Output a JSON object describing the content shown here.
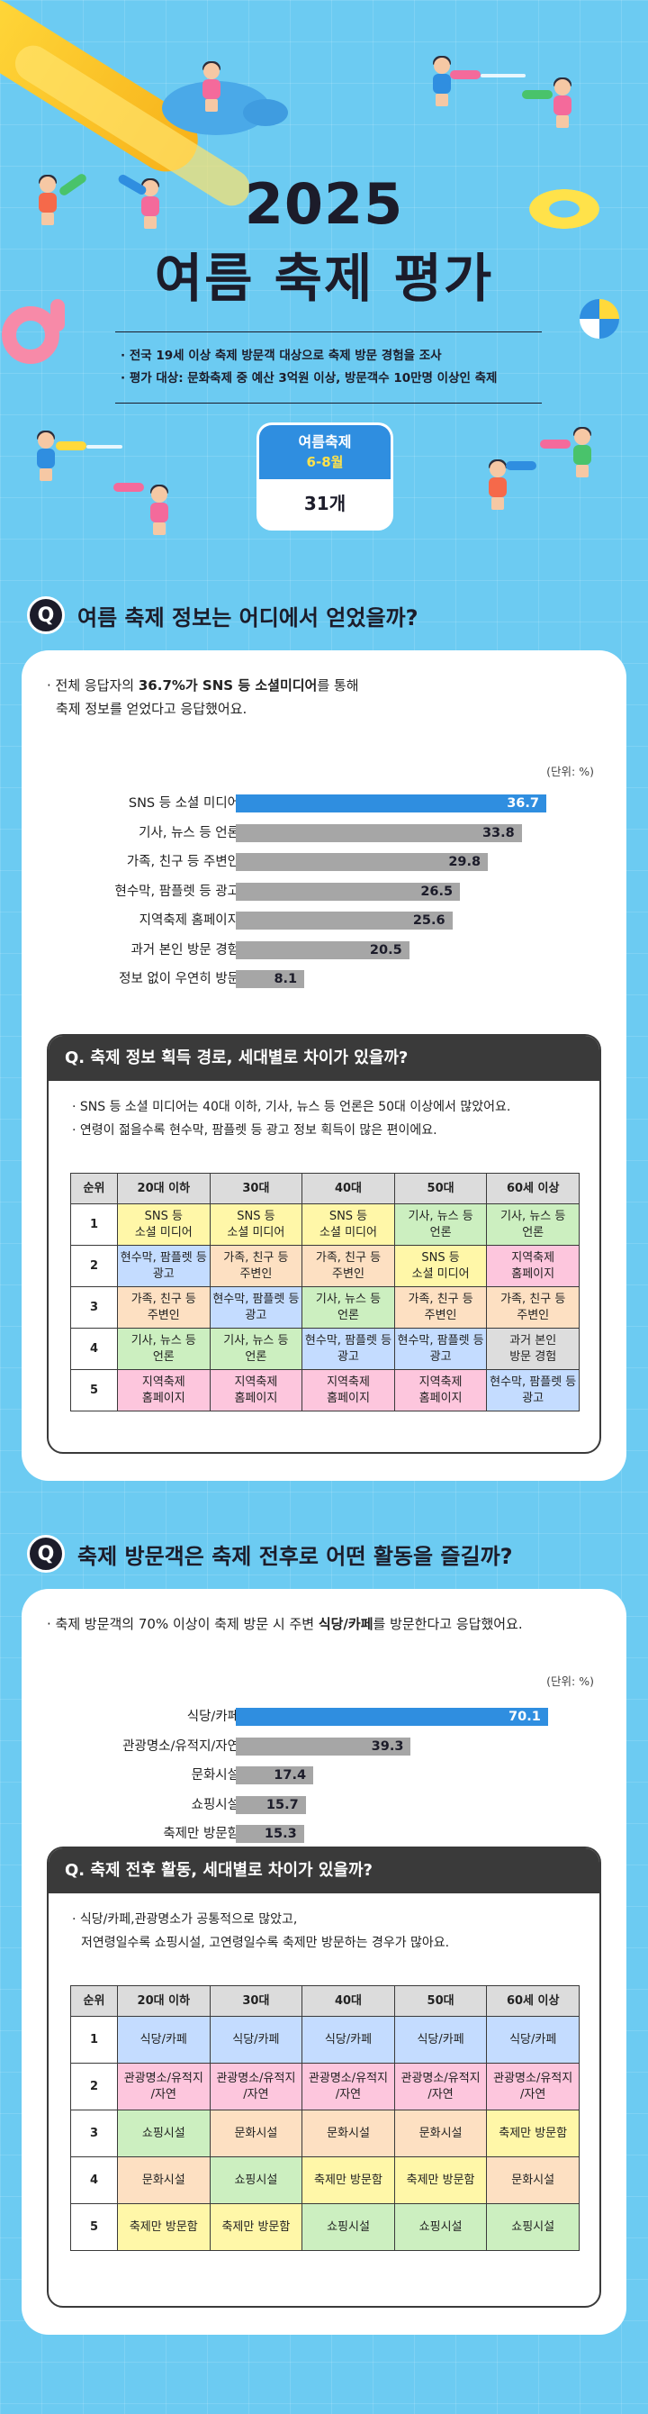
{
  "hero": {
    "year": "2025",
    "title": "여름 축제 평가",
    "info": [
      "· 전국 19세 이상 축제 방문객 대상으로 축제 방문 경험을 조사",
      "· 평가 대상: 문화축제 중 예산 3억원 이상, 방문객수 10만명 이상인 축제"
    ],
    "badge": {
      "label": "여름축제",
      "period": "6-8월",
      "count": "31개"
    }
  },
  "section1": {
    "q_mark": "Q",
    "question": "여름 축제 정보는 어디에서 얻었을까?",
    "lead_prefix": "· 전체 응답자의 ",
    "lead_bold": "36.7%가 SNS 등 소셜미디어",
    "lead_suffix": "를 통해",
    "lead_line2": "축제 정보를 얻었다고 응답했어요.",
    "unit": "(단위: %)",
    "sub_title": "Q. 축제 정보 획득 경로, 세대별로 차이가 있을까?",
    "sub_bullets": [
      "· SNS 등 소셜 미디어는 40대 이하, 기사, 뉴스 등 언론은 50대 이상에서 많았어요.",
      "· 연령이 젊을수록 현수막, 팜플렛 등 광고 정보 획득이 많은 편이에요."
    ],
    "table": {
      "headers": [
        "순위",
        "20대 이하",
        "30대",
        "40대",
        "50대",
        "60세 이상"
      ],
      "rows": [
        [
          "1",
          "SNS 등\n소셜 미디어",
          "SNS 등\n소셜 미디어",
          "SNS 등\n소셜 미디어",
          "기사, 뉴스 등\n언론",
          "기사, 뉴스 등\n언론"
        ],
        [
          "2",
          "현수막, 팜플렛 등\n광고",
          "가족, 친구 등\n주변인",
          "가족, 친구 등\n주변인",
          "SNS 등\n소셜 미디어",
          "지역축제\n홈페이지"
        ],
        [
          "3",
          "가족, 친구 등\n주변인",
          "현수막, 팜플렛 등\n광고",
          "기사, 뉴스 등\n언론",
          "가족, 친구 등\n주변인",
          "가족, 친구 등\n주변인"
        ],
        [
          "4",
          "기사, 뉴스 등\n언론",
          "기사, 뉴스 등\n언론",
          "현수막, 팜플렛 등\n광고",
          "현수막, 팜플렛 등\n광고",
          "과거 본인\n방문 경험"
        ],
        [
          "5",
          "지역축제\n홈페이지",
          "지역축제\n홈페이지",
          "지역축제\n홈페이지",
          "지역축제\n홈페이지",
          "현수막, 팜플렛 등\n광고"
        ]
      ]
    }
  },
  "section2": {
    "q_mark": "Q",
    "question": "축제 방문객은 축제 전후로 어떤 활동을 즐길까?",
    "lead_prefix": "· 축제 방문객의 70% 이상이 축제 방문 시 주변 ",
    "lead_bold": "식당/카페",
    "lead_suffix": "를 방문한다고 응답했어요.",
    "unit": "(단위: %)",
    "sub_title": "Q. 축제 전후 활동, 세대별로 차이가 있을까?",
    "sub_bullets": [
      "· 식당/카페,관광명소가 공통적으로 많았고,",
      "저연령일수록 쇼핑시설, 고연령일수록 축제만 방문하는 경우가 많아요."
    ],
    "table": {
      "headers": [
        "순위",
        "20대 이하",
        "30대",
        "40대",
        "50대",
        "60세 이상"
      ],
      "rows": [
        [
          "1",
          "식당/카페",
          "식당/카페",
          "식당/카페",
          "식당/카페",
          "식당/카페"
        ],
        [
          "2",
          "관광명소/유적지\n/자연",
          "관광명소/유적지\n/자연",
          "관광명소/유적지\n/자연",
          "관광명소/유적지\n/자연",
          "관광명소/유적지\n/자연"
        ],
        [
          "3",
          "쇼핑시설",
          "문화시설",
          "문화시설",
          "문화시설",
          "축제만 방문함"
        ],
        [
          "4",
          "문화시설",
          "쇼핑시설",
          "축제만 방문함",
          "축제만 방문함",
          "문화시설"
        ],
        [
          "5",
          "축제만 방문함",
          "축제만 방문함",
          "쇼핑시설",
          "쇼핑시설",
          "쇼핑시설"
        ]
      ]
    }
  },
  "chart_data": [
    {
      "type": "bar",
      "orientation": "horizontal",
      "categories": [
        "SNS 등 소셜 미디어",
        "기사, 뉴스 등 언론",
        "가족, 친구 등 주변인",
        "현수막, 팜플렛 등 광고",
        "지역축제 홈페이지",
        "과거 본인 방문 경험",
        "정보 없이 우연히 방문"
      ],
      "values": [
        36.7,
        33.8,
        29.8,
        26.5,
        25.6,
        20.5,
        8.1
      ],
      "highlight_index": 0,
      "xlim": [
        0,
        40
      ]
    },
    {
      "type": "bar",
      "orientation": "horizontal",
      "categories": [
        "식당/카페",
        "관광명소/유적지/자연",
        "문화시설",
        "쇼핑시설",
        "축제만 방문함"
      ],
      "values": [
        70.1,
        39.3,
        17.4,
        15.7,
        15.3
      ],
      "highlight_index": 0,
      "xlim": [
        0,
        76
      ]
    }
  ],
  "colors": {
    "background": "#6ccbf2",
    "accent_blue": "#2f8ee0",
    "bar_gray": "#a6a6a6",
    "dark": "#1c1c2a"
  },
  "icons": [
    "water-slide-icon",
    "swim-ring-icon",
    "beach-ball-icon",
    "flamingo-float-icon",
    "water-gun-kid-icon"
  ]
}
